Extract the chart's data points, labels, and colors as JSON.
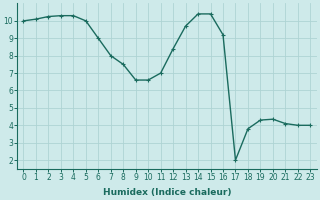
{
  "x": [
    0,
    1,
    2,
    3,
    4,
    5,
    6,
    7,
    8,
    9,
    10,
    11,
    12,
    13,
    14,
    15,
    16,
    17,
    18,
    19,
    20,
    21,
    22,
    23
  ],
  "y": [
    10.0,
    10.1,
    10.25,
    10.3,
    10.3,
    10.0,
    9.0,
    8.0,
    7.5,
    6.6,
    6.6,
    7.0,
    8.4,
    9.7,
    10.4,
    10.4,
    9.2,
    2.0,
    3.8,
    4.3,
    4.35,
    4.1,
    4.0,
    4.0
  ],
  "line_color": "#1a6b5e",
  "marker": "+",
  "marker_size": 3,
  "marker_lw": 0.8,
  "line_width": 1.0,
  "bg_color": "#ceeaea",
  "grid_color": "#aed4d4",
  "xlabel": "Humidex (Indice chaleur)",
  "xlim": [
    -0.5,
    23.5
  ],
  "ylim": [
    1.5,
    11.0
  ],
  "yticks": [
    2,
    3,
    4,
    5,
    6,
    7,
    8,
    9,
    10
  ],
  "xticks": [
    0,
    1,
    2,
    3,
    4,
    5,
    6,
    7,
    8,
    9,
    10,
    11,
    12,
    13,
    14,
    15,
    16,
    17,
    18,
    19,
    20,
    21,
    22,
    23
  ],
  "label_fontsize": 6.5,
  "tick_fontsize": 5.5
}
